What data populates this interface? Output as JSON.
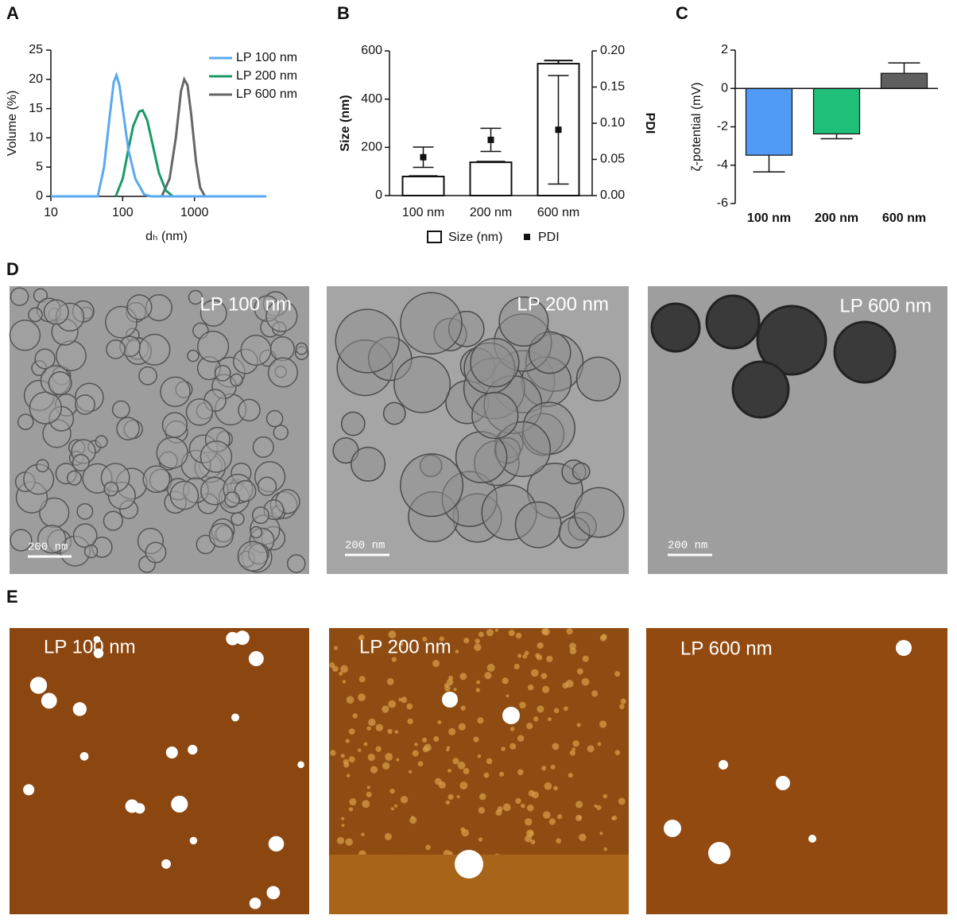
{
  "chart_data": [
    {
      "type": "line",
      "panel": "A",
      "y_label": "Volume (%)",
      "x_label": "dₕ (nm)",
      "x_scale": "log",
      "xlim": [
        10,
        10000
      ],
      "xticks": [
        10,
        100,
        1000
      ],
      "ylim": [
        0,
        25
      ],
      "yticks": [
        0,
        5,
        10,
        15,
        20,
        25
      ],
      "legend": "top-right",
      "series": [
        {
          "name": "LP 100 nm",
          "color": "#5aa9f0",
          "x": [
            10,
            45,
            55,
            65,
            75,
            82,
            90,
            100,
            120,
            150,
            200,
            250,
            10000
          ],
          "values": [
            0,
            0,
            5,
            13,
            19.5,
            20.7,
            19,
            15,
            8,
            3,
            0.3,
            0,
            0
          ]
        },
        {
          "name": "LP 200 nm",
          "color": "#1a9a66",
          "x": [
            80,
            100,
            120,
            140,
            170,
            190,
            220,
            260,
            320,
            400,
            500
          ],
          "values": [
            0,
            3,
            8,
            12,
            14.5,
            14.7,
            13,
            9,
            4,
            1,
            0
          ]
        },
        {
          "name": "LP 600 nm",
          "color": "#666666",
          "x": [
            350,
            450,
            550,
            650,
            720,
            800,
            900,
            1050,
            1200,
            1400
          ],
          "values": [
            0,
            3,
            10,
            18,
            20,
            19,
            14,
            6,
            1.5,
            0
          ]
        }
      ]
    },
    {
      "type": "bar",
      "panel": "B",
      "y_label": "Size (nm)",
      "y2_label": "PDI",
      "categories": [
        "100 nm",
        "200 nm",
        "600 nm"
      ],
      "ylim": [
        0,
        600
      ],
      "yticks": [
        0,
        200,
        400,
        600
      ],
      "y2lim": [
        0,
        0.2
      ],
      "y2ticks": [
        {
          "value": 0,
          "label": "0.00"
        },
        {
          "value": 0.05,
          "label": "0.05"
        },
        {
          "value": 0.1,
          "label": "0.10"
        },
        {
          "value": 0.15,
          "label": "0.15"
        },
        {
          "value": 0.2,
          "label": "0.20"
        }
      ],
      "legend": "bottom",
      "series": [
        {
          "name": "Size (nm)",
          "color": "#ffffff",
          "values": [
            79,
            138,
            547
          ],
          "errors": [
            2,
            3,
            13
          ]
        },
        {
          "name": "PDI",
          "color": "#111111",
          "axis": "y2",
          "marker": "square",
          "values": [
            0.053,
            0.077,
            0.091
          ],
          "errors": [
            0.014,
            0.016,
            0.075
          ]
        }
      ]
    },
    {
      "type": "bar",
      "panel": "C",
      "y_label": "ζ-potential (mV)",
      "categories": [
        "100 nm",
        "200 nm",
        "600 nm"
      ],
      "ylim": [
        -6,
        2
      ],
      "yticks": [
        -6,
        -4,
        -2,
        0,
        2
      ],
      "values": [
        -3.48,
        -2.37,
        0.79
      ],
      "errors": [
        0.87,
        0.25,
        0.54
      ],
      "colors": [
        "#4f9bf5",
        "#1fbf7a",
        "#5f5f5f"
      ]
    }
  ],
  "micrographs": {
    "panel": "D",
    "images": [
      {
        "title": "LP 100 nm",
        "scale_bar": "200 nm"
      },
      {
        "title": "LP 200 nm",
        "scale_bar": "200 nm"
      },
      {
        "title": "LP 600 nm",
        "scale_bar": "200 nm"
      }
    ]
  },
  "afm": {
    "panel": "E",
    "images": [
      {
        "title": "LP 100 nm"
      },
      {
        "title": "LP 200 nm"
      },
      {
        "title": "LP 600 nm"
      }
    ]
  }
}
